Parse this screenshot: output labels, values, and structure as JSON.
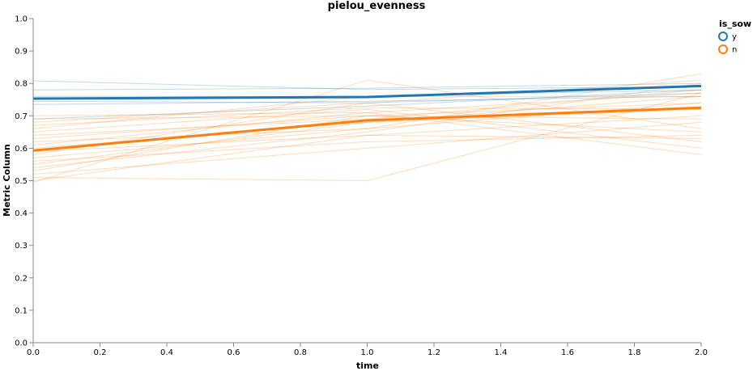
{
  "chart_data": {
    "type": "line",
    "title": "pielou_evenness",
    "xlabel": "time",
    "ylabel": "Metric Column",
    "xlim": [
      0,
      2
    ],
    "ylim": [
      0,
      1
    ],
    "x_ticks": [
      "0.0",
      "0.2",
      "0.4",
      "0.6",
      "0.8",
      "1.0",
      "1.2",
      "1.4",
      "1.6",
      "1.8",
      "2.0"
    ],
    "y_ticks": [
      "0.0",
      "0.1",
      "0.2",
      "0.3",
      "0.4",
      "0.5",
      "0.6",
      "0.7",
      "0.8",
      "0.9",
      "1.0"
    ],
    "grid": false,
    "legend": {
      "title": "is_sow",
      "position": "top-right",
      "entries": [
        {
          "label": "y",
          "color": "#1f77b4"
        },
        {
          "label": "n",
          "color": "#ff7f0e"
        }
      ]
    },
    "series": [
      {
        "name": "y",
        "color": "#1f77b4",
        "x": [
          0,
          1,
          2
        ],
        "values": [
          0.753,
          0.758,
          0.792
        ]
      },
      {
        "name": "n",
        "color": "#ff7f0e",
        "x": [
          0,
          1,
          2
        ],
        "values": [
          0.593,
          0.686,
          0.725
        ]
      }
    ],
    "individual_series": [
      {
        "group": "y",
        "x": [
          0,
          1,
          2
        ],
        "values": [
          0.808,
          0.781,
          0.79
        ]
      },
      {
        "group": "y",
        "x": [
          0,
          1,
          2
        ],
        "values": [
          0.78,
          0.785,
          0.8
        ]
      },
      {
        "group": "y",
        "x": [
          0,
          1,
          2
        ],
        "values": [
          0.76,
          0.76,
          0.78
        ]
      },
      {
        "group": "y",
        "x": [
          0,
          1,
          2
        ],
        "values": [
          0.745,
          0.74,
          0.77
        ]
      },
      {
        "group": "y",
        "x": [
          0,
          1,
          2
        ],
        "values": [
          0.735,
          0.745,
          0.76
        ]
      },
      {
        "group": "y",
        "x": [
          0,
          1,
          2
        ],
        "values": [
          0.69,
          0.73,
          0.78
        ]
      },
      {
        "group": "n",
        "x": [
          0,
          1,
          2
        ],
        "values": [
          0.7,
          0.71,
          0.77
        ]
      },
      {
        "group": "n",
        "x": [
          0,
          1,
          2
        ],
        "values": [
          0.69,
          0.7,
          0.69
        ]
      },
      {
        "group": "n",
        "x": [
          0,
          1,
          2
        ],
        "values": [
          0.68,
          0.74,
          0.81
        ]
      },
      {
        "group": "n",
        "x": [
          0,
          1,
          2
        ],
        "values": [
          0.67,
          0.725,
          0.72
        ]
      },
      {
        "group": "n",
        "x": [
          0,
          1,
          2
        ],
        "values": [
          0.66,
          0.76,
          0.76
        ]
      },
      {
        "group": "n",
        "x": [
          0,
          1,
          2
        ],
        "values": [
          0.65,
          0.72,
          0.6
        ]
      },
      {
        "group": "n",
        "x": [
          0,
          1,
          2
        ],
        "values": [
          0.64,
          0.69,
          0.78
        ]
      },
      {
        "group": "n",
        "x": [
          0,
          1,
          2
        ],
        "values": [
          0.63,
          0.7,
          0.65
        ]
      },
      {
        "group": "n",
        "x": [
          0,
          1,
          2
        ],
        "values": [
          0.62,
          0.66,
          0.74
        ]
      },
      {
        "group": "n",
        "x": [
          0,
          1,
          2
        ],
        "values": [
          0.61,
          0.71,
          0.58
        ]
      },
      {
        "group": "n",
        "x": [
          0,
          1,
          2
        ],
        "values": [
          0.6,
          0.68,
          0.76
        ]
      },
      {
        "group": "n",
        "x": [
          0,
          1,
          2
        ],
        "values": [
          0.59,
          0.64,
          0.7
        ]
      },
      {
        "group": "n",
        "x": [
          0,
          1,
          2
        ],
        "values": [
          0.58,
          0.74,
          0.62
        ]
      },
      {
        "group": "n",
        "x": [
          0,
          1,
          2
        ],
        "values": [
          0.57,
          0.66,
          0.83
        ]
      },
      {
        "group": "n",
        "x": [
          0,
          1,
          2
        ],
        "values": [
          0.56,
          0.62,
          0.64
        ]
      },
      {
        "group": "n",
        "x": [
          0,
          1,
          2
        ],
        "values": [
          0.55,
          0.68,
          0.72
        ]
      },
      {
        "group": "n",
        "x": [
          0,
          1,
          2
        ],
        "values": [
          0.54,
          0.65,
          0.8
        ]
      },
      {
        "group": "n",
        "x": [
          0,
          1,
          2
        ],
        "values": [
          0.53,
          0.7,
          0.74
        ]
      },
      {
        "group": "n",
        "x": [
          0,
          1,
          2
        ],
        "values": [
          0.52,
          0.6,
          0.68
        ]
      },
      {
        "group": "n",
        "x": [
          0,
          1,
          2
        ],
        "values": [
          0.51,
          0.5,
          0.77
        ]
      },
      {
        "group": "n",
        "x": [
          0,
          1,
          2
        ],
        "values": [
          0.5,
          0.64,
          0.63
        ]
      },
      {
        "group": "n",
        "x": [
          0,
          1,
          2
        ],
        "values": [
          0.495,
          0.81,
          0.66
        ]
      }
    ]
  }
}
